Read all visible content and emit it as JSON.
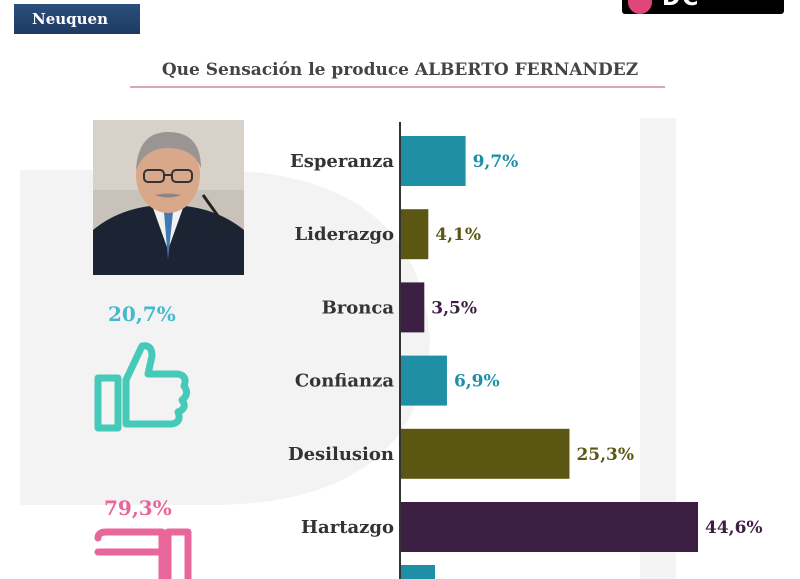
{
  "header": {
    "region": "Neuquen",
    "logo_text": "DC"
  },
  "colors": {
    "teal": "#1f8fa6",
    "olive": "#5b5712",
    "plum": "#3e1f44",
    "approve": "#45b9cf",
    "disapprove": "#e9669a"
  },
  "summary": {
    "approve": "20,7%",
    "disapprove": "79,3%"
  },
  "icons": {
    "approve": "thumbs-up-icon",
    "disapprove": "thumbs-down-icon"
  },
  "chart_data": {
    "type": "bar",
    "orientation": "horizontal",
    "title": "Que Sensación le produce ALBERTO FERNANDEZ",
    "categories": [
      "Esperanza",
      "Liderazgo",
      "Bronca",
      "Confianza",
      "Desilusion",
      "Hartazgo"
    ],
    "values": [
      9.7,
      4.1,
      3.5,
      6.9,
      25.3,
      44.6
    ],
    "value_labels": [
      "9,7%",
      "4,1%",
      "3,5%",
      "6,9%",
      "25,3%",
      "44,6%"
    ],
    "bar_colors": [
      "#1f8fa6",
      "#5b5712",
      "#3e1f44",
      "#1f8fa6",
      "#5b5712",
      "#3e1f44"
    ],
    "xlim": [
      0,
      50
    ],
    "grid": false,
    "legend": "none"
  }
}
